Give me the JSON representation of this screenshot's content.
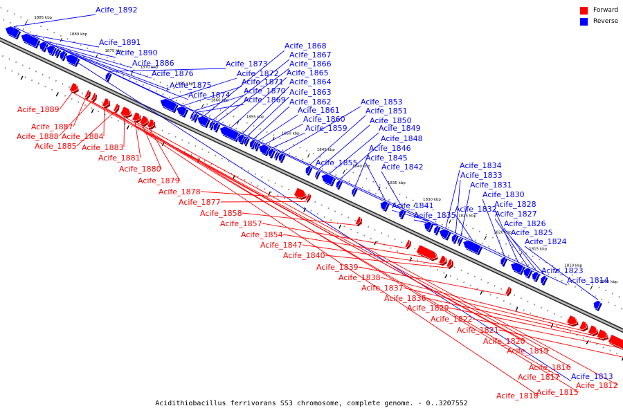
{
  "title": "Acidithiobacillus ferrivorans SS3 chromosome, complete genome. - 0..3207552",
  "legend": [
    {
      "label": "Forward",
      "color": "#ff0000"
    },
    {
      "label": "Reverse",
      "color": "#0000ff"
    }
  ],
  "ticks": [
    "1885 kbp",
    "1880 kbp",
    "1875 kbp",
    "1870 kbp",
    "1865 kbp",
    "1860 kbp",
    "1855 kbp",
    "1850 kbp",
    "1845 kbp",
    "1840 kbp",
    "1835 kbp",
    "1830 kbp",
    "1825 kbp",
    "1820 kbp",
    "1815 kbp",
    "1810 kbp",
    "1805 kbp",
    "1800 kbp"
  ],
  "reverse_genes": [
    "Acife_1892",
    "Acife_1891",
    "Acife_1890",
    "Acife_1886",
    "Acife_1876",
    "Acife_1875",
    "Acife_1874",
    "Acife_1873",
    "Acife_1872",
    "Acife_1871",
    "Acife_1870",
    "Acife_1869",
    "Acife_1868",
    "Acife_1867",
    "Acife_1866",
    "Acife_1865",
    "Acife_1864",
    "Acife_1863",
    "Acife_1862",
    "Acife_1861",
    "Acife_1860",
    "Acife_1859",
    "Acife_1855",
    "Acife_1853",
    "Acife_1851",
    "Acife_1850",
    "Acife_1849",
    "Acife_1848",
    "Acife_1846",
    "Acife_1845",
    "Acife_1842",
    "Acife_1841",
    "Acife_1835",
    "Acife_1834",
    "Acife_1833",
    "Acife_1831",
    "Acife_1832",
    "Acife_1830",
    "Acife_1828",
    "Acife_1827",
    "Acife_1826",
    "Acife_1825",
    "Acife_1824",
    "Acife_1823",
    "Acife_1814",
    "Acife_1813"
  ],
  "forward_genes": [
    "Acife_1889",
    "Acife_1887",
    "Acife_1888",
    "Acife_1884",
    "Acife_1885",
    "Acife_1883",
    "Acife_1881",
    "Acife_1880",
    "Acife_1879",
    "Acife_1878",
    "Acife_1877",
    "Acife_1858",
    "Acife_1857",
    "Acife_1854",
    "Acife_1847",
    "Acife_1840",
    "Acife_1839",
    "Acife_1838",
    "Acife_1837",
    "Acife_1836",
    "Acife_1829",
    "Acife_1822",
    "Acife_1821",
    "Acife_1820",
    "Acife_1819",
    "Acife_1816",
    "Acife_1817",
    "Acife_1818",
    "Acife_1815",
    "Acife_1812"
  ],
  "colors": {
    "forward": "#ff0000",
    "reverse": "#0000ff",
    "backbone": "#666666"
  }
}
